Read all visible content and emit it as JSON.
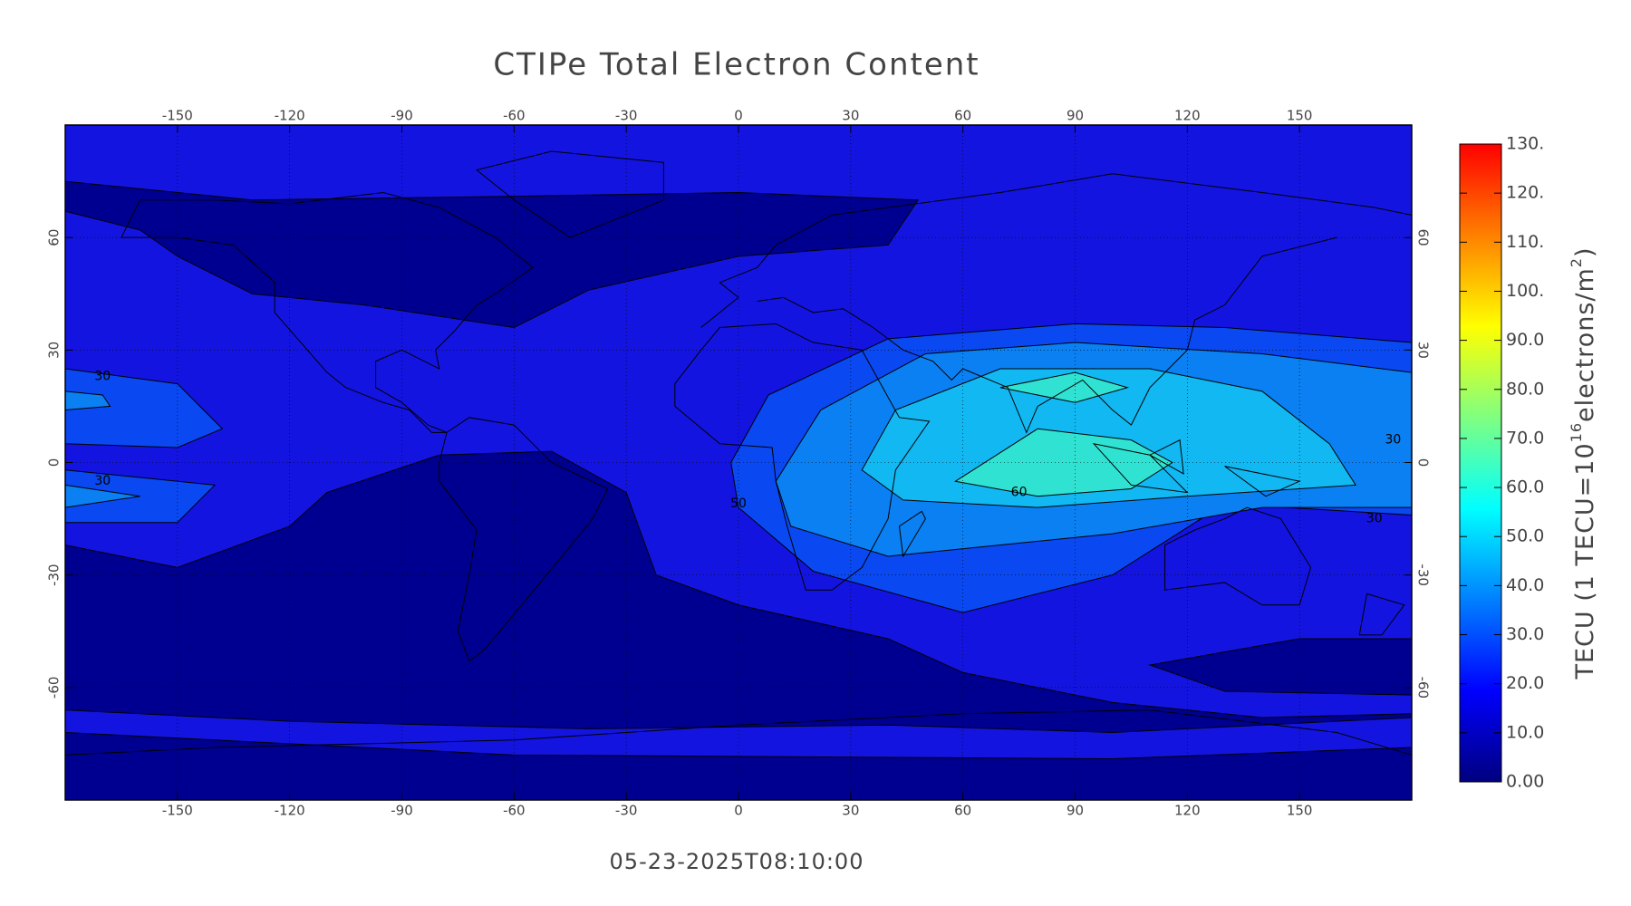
{
  "chart_data": {
    "type": "contour-map",
    "title": "CTIPe Total Electron Content",
    "subtitle": "05-23-2025T08:10:00",
    "xlim": [
      -180,
      180
    ],
    "ylim": [
      -90,
      90
    ],
    "xticks": [
      -150,
      -120,
      -90,
      -60,
      -30,
      0,
      30,
      60,
      90,
      120,
      150
    ],
    "yticks": [
      -60,
      -30,
      0,
      30,
      60
    ],
    "grid": true,
    "contour_labels": [
      {
        "level": 30,
        "lon": -170,
        "lat": 23
      },
      {
        "level": 30,
        "lon": -170,
        "lat": -5
      },
      {
        "level": 60,
        "lon": 75,
        "lat": -8
      },
      {
        "level": 50,
        "lon": 0,
        "lat": -11
      },
      {
        "level": 30,
        "lon": 170,
        "lat": -15
      },
      {
        "level": 30,
        "lon": 175,
        "lat": 6
      }
    ],
    "colorbar": {
      "lim": [
        0,
        130
      ],
      "colors": [
        "#00007f",
        "#0000ff",
        "#0080ff",
        "#00ffff",
        "#80ff80",
        "#ffff00",
        "#ff8000",
        "#ff0000"
      ],
      "ticks": [
        {
          "value": 0,
          "label": "0.00"
        },
        {
          "value": 10,
          "label": "10.0"
        },
        {
          "value": 20,
          "label": "20.0"
        },
        {
          "value": 30,
          "label": "30.0"
        },
        {
          "value": 40,
          "label": "40.0"
        },
        {
          "value": 50,
          "label": "50.0"
        },
        {
          "value": 60,
          "label": "60.0"
        },
        {
          "value": 70,
          "label": "70.0"
        },
        {
          "value": 80,
          "label": "80.0"
        },
        {
          "value": 90,
          "label": "90.0"
        },
        {
          "value": 100,
          "label": "100."
        },
        {
          "value": 110,
          "label": "110."
        },
        {
          "value": 120,
          "label": "120."
        },
        {
          "value": 130,
          "label": "130."
        }
      ],
      "label_parts": [
        "TECU (1 TECU=10",
        "16",
        "electrons/m",
        "2",
        ")"
      ]
    }
  }
}
